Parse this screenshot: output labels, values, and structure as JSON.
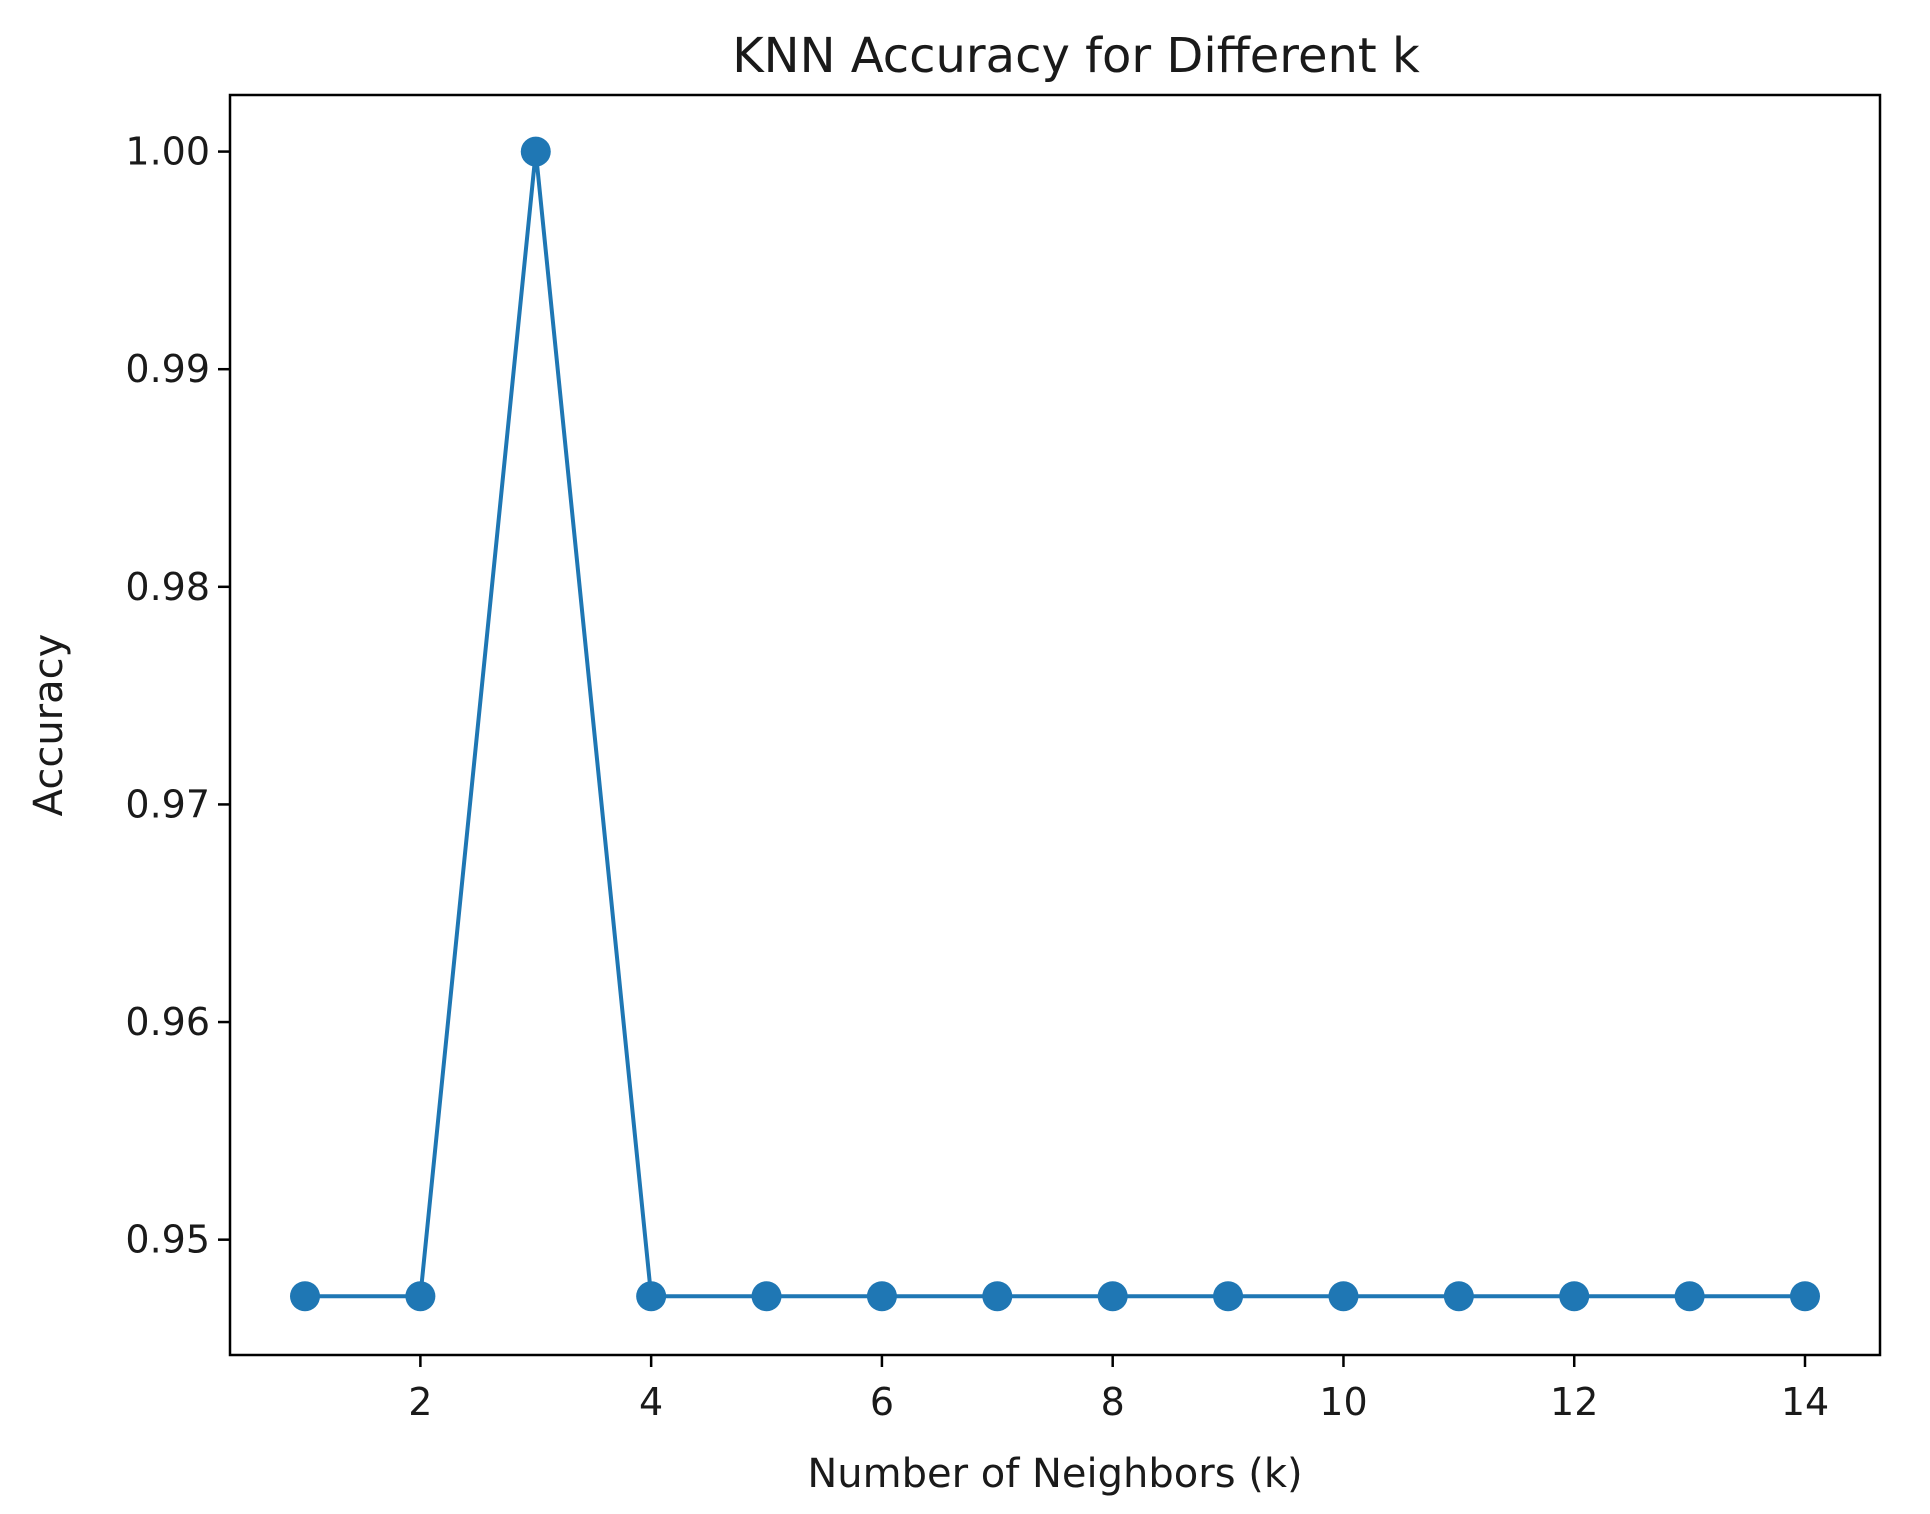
{
  "chart_data": {
    "type": "line",
    "title": "KNN Accuracy for Different k",
    "xlabel": "Number of Neighbors (k)",
    "ylabel": "Accuracy",
    "xlim": [
      0.35,
      14.65
    ],
    "ylim": [
      0.9447,
      1.0026
    ],
    "x_ticks": [
      2,
      4,
      6,
      8,
      10,
      12,
      14
    ],
    "x_tick_labels": [
      "2",
      "4",
      "6",
      "8",
      "10",
      "12",
      "14"
    ],
    "y_ticks": [
      0.95,
      0.96,
      0.97,
      0.98,
      0.99,
      1.0
    ],
    "y_tick_labels": [
      "0.95",
      "0.96",
      "0.97",
      "0.98",
      "0.99",
      "1.00"
    ],
    "grid": false,
    "marker": "circle",
    "color": "#1f77b4",
    "x": [
      1,
      2,
      3,
      4,
      5,
      6,
      7,
      8,
      9,
      10,
      11,
      12,
      13,
      14
    ],
    "series": [
      {
        "values": [
          0.9474,
          0.9474,
          1.0,
          0.9474,
          0.9474,
          0.9474,
          0.9474,
          0.9474,
          0.9474,
          0.9474,
          0.9474,
          0.9474,
          0.9474,
          0.9474
        ]
      }
    ]
  }
}
